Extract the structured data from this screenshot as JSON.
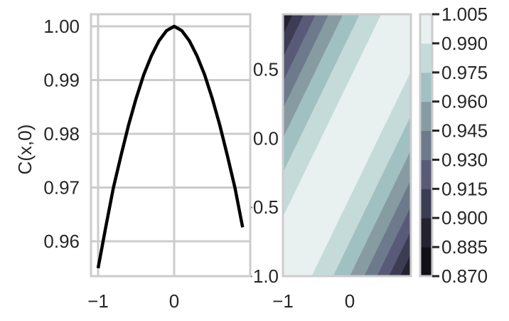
{
  "chart_data": [
    {
      "type": "line",
      "title": "",
      "xlabel": "",
      "ylabel": "C(x,0)",
      "x": [
        -1.0,
        -0.9,
        -0.8,
        -0.7,
        -0.6,
        -0.5,
        -0.4,
        -0.3,
        -0.2,
        -0.1,
        0.0,
        0.1,
        0.2,
        0.3,
        0.4,
        0.5,
        0.6,
        0.7,
        0.8,
        0.9
      ],
      "series": [
        {
          "values": [
            0.955,
            0.9626,
            0.9699,
            0.9759,
            0.9816,
            0.9866,
            0.991,
            0.9945,
            0.9973,
            0.9992,
            1.0,
            0.9992,
            0.9973,
            0.9945,
            0.991,
            0.9866,
            0.9816,
            0.9759,
            0.9699,
            0.9626
          ],
          "color": "#000000"
        }
      ],
      "xlim": [
        -1.1,
        1.0
      ],
      "ylim": [
        0.9535,
        1.0023
      ],
      "xticks": [
        "−1",
        "0"
      ],
      "yticks": [
        "0.96",
        "0.97",
        "0.98",
        "0.99",
        "1.00"
      ],
      "grid": true
    },
    {
      "type": "contourf",
      "title": "",
      "xlabel": "",
      "ylabel": "",
      "xlim": [
        -1.0,
        0.91
      ],
      "ylim": [
        -1.0,
        0.9
      ],
      "xticks": [
        "−1",
        "0"
      ],
      "yticks": [
        "−1.0",
        "−0.5",
        "0.0",
        "0.5"
      ],
      "levels": [
        0.87,
        0.885,
        0.9,
        0.915,
        0.93,
        0.945,
        0.96,
        0.975,
        0.99,
        1.005
      ],
      "colorbar_ticks": [
        "0.870",
        "0.885",
        "0.900",
        "0.915",
        "0.930",
        "0.945",
        "0.960",
        "0.975",
        "0.990",
        "1.005"
      ],
      "colormap": [
        "#111016",
        "#24222e",
        "#3d3c55",
        "#595a78",
        "#6d7a8c",
        "#879ba3",
        "#a1c0c2",
        "#c5dbda",
        "#e8f1f0"
      ],
      "grid": false
    }
  ]
}
